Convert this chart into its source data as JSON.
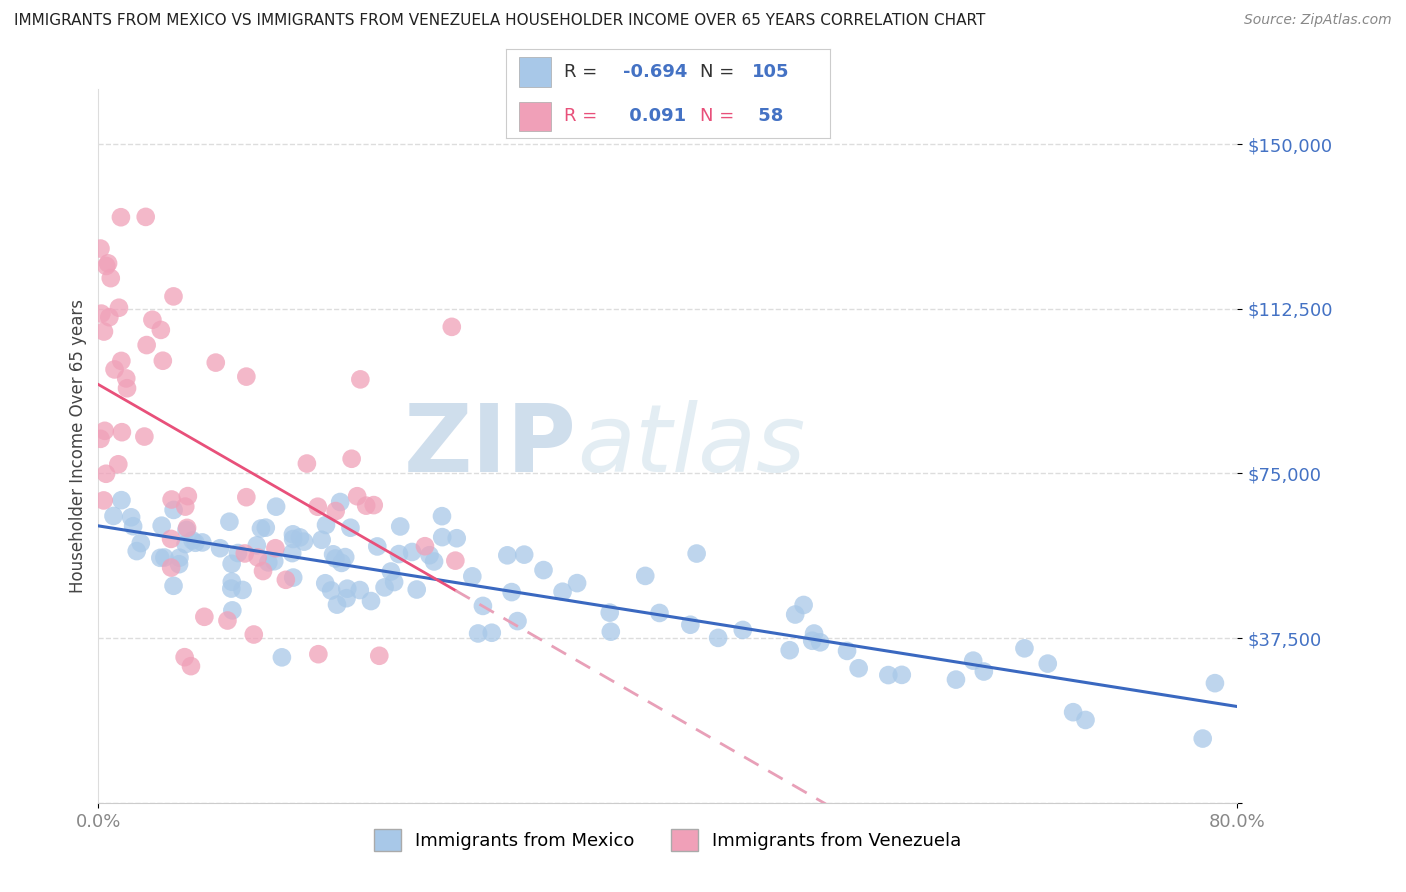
{
  "title": "IMMIGRANTS FROM MEXICO VS IMMIGRANTS FROM VENEZUELA HOUSEHOLDER INCOME OVER 65 YEARS CORRELATION CHART",
  "source": "Source: ZipAtlas.com",
  "ylabel": "Householder Income Over 65 years",
  "xlim": [
    0.0,
    80.0
  ],
  "ylim": [
    0,
    162500
  ],
  "yticks": [
    0,
    37500,
    75000,
    112500,
    150000
  ],
  "ytick_labels": [
    "",
    "$37,500",
    "$75,000",
    "$112,500",
    "$150,000"
  ],
  "xtick_labels": [
    "0.0%",
    "80.0%"
  ],
  "mexico_R": -0.694,
  "mexico_N": 105,
  "venezuela_R": 0.091,
  "venezuela_N": 58,
  "mexico_color": "#a8c8e8",
  "venezuela_color": "#f0a0b8",
  "mexico_line_color": "#3a68c0",
  "venezuela_line_solid_color": "#e8507a",
  "venezuela_line_dash_color": "#e8a0b8",
  "background_color": "#ffffff",
  "watermark_zip_color": "#b8cce0",
  "watermark_atlas_color": "#c8dce8",
  "grid_color": "#dddddd",
  "ytick_color": "#4472c4",
  "legend_border_color": "#cccccc",
  "title_color": "#222222",
  "source_color": "#888888",
  "ylabel_color": "#444444",
  "mexico_seed": 42,
  "venezuela_seed": 77,
  "legend_R_label_color": "#444444",
  "legend_value_color": "#4472c4",
  "legend_pink_label_color": "#e8507a"
}
